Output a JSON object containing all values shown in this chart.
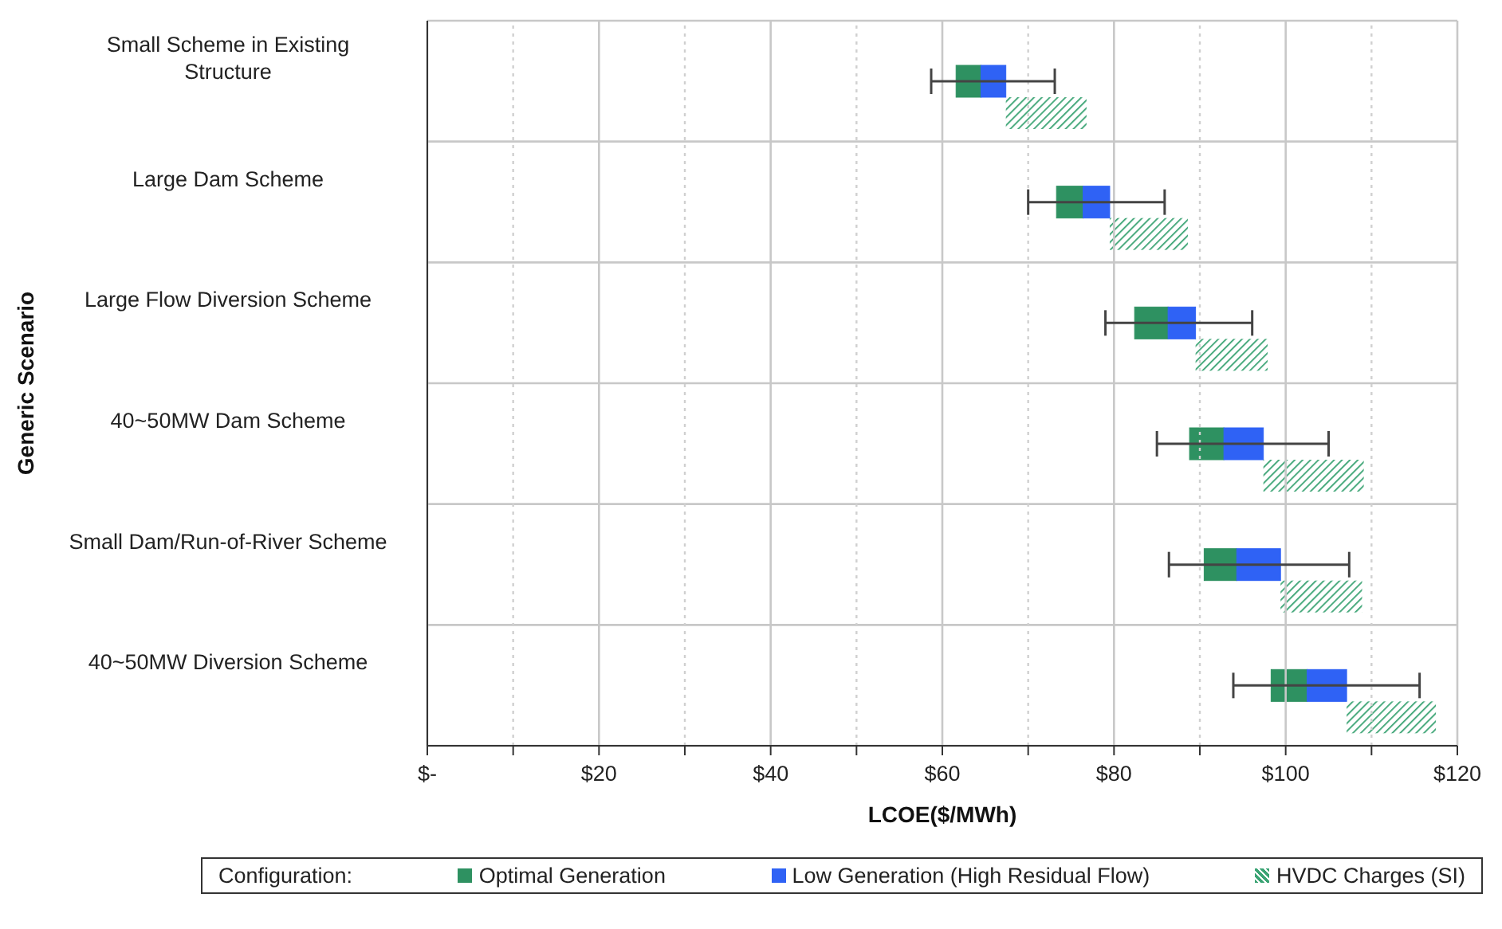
{
  "chart_data": {
    "type": "bar",
    "orientation": "horizontal",
    "stacked": true,
    "xlabel": "LCOE($/MWh)",
    "ylabel": "Generic Scenario",
    "legend_title": "Configuration:",
    "categories": [
      "Small Scheme in Existing Structure",
      "Large Dam Scheme",
      "Large Flow Diversion Scheme",
      "40~50MW Dam Scheme",
      "Small Dam/Run-of-River Scheme",
      "40~50MW Diversion Scheme"
    ],
    "series": [
      {
        "name": "Optimal Generation",
        "color": "#2e9161",
        "base": [
          61.6,
          73.3,
          82.4,
          88.8,
          90.5,
          98.3
        ],
        "values": [
          2.9,
          3.1,
          3.9,
          4.0,
          3.8,
          4.2
        ]
      },
      {
        "name": "Low Generation (High Residual Flow)",
        "color": "#2f62f5",
        "base": [
          64.5,
          76.4,
          86.3,
          92.8,
          94.3,
          102.5
        ],
        "values": [
          2.9,
          3.1,
          3.2,
          4.6,
          5.1,
          4.6
        ],
        "errors": [
          [
            58.7,
            73.1
          ],
          [
            70.0,
            85.9
          ],
          [
            79.0,
            96.1
          ],
          [
            85.0,
            105.0
          ],
          [
            86.4,
            107.4
          ],
          [
            93.9,
            115.6
          ]
        ]
      },
      {
        "name": "HVDC Charges (SI)",
        "color": "#3aa373",
        "base": [
          67.4,
          79.5,
          89.5,
          97.4,
          99.4,
          107.1
        ],
        "values": [
          9.4,
          9.1,
          8.4,
          11.7,
          9.5,
          10.4
        ]
      }
    ],
    "xlim": [
      0,
      120
    ],
    "xticks": [
      {
        "value": 0,
        "label": "$-"
      },
      {
        "value": 10,
        "label": null
      },
      {
        "value": 20,
        "label": "$20"
      },
      {
        "value": 30,
        "label": null
      },
      {
        "value": 40,
        "label": "$40"
      },
      {
        "value": 50,
        "label": null
      },
      {
        "value": 60,
        "label": "$60"
      },
      {
        "value": 70,
        "label": null
      },
      {
        "value": 80,
        "label": "$80"
      },
      {
        "value": 90,
        "label": null
      },
      {
        "value": 100,
        "label": "$100"
      },
      {
        "value": 110,
        "label": null
      },
      {
        "value": 120,
        "label": "$120"
      }
    ],
    "grid": true,
    "legend": "bottom"
  }
}
